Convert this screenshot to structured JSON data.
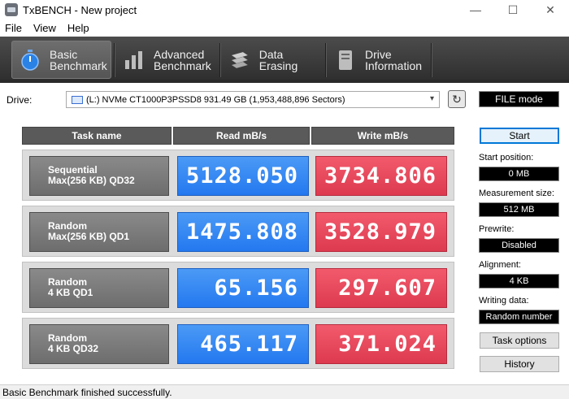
{
  "window": {
    "title": "TxBENCH - New project",
    "min": "—",
    "max": "☐",
    "close": "✕"
  },
  "menu": {
    "file": "File",
    "view": "View",
    "help": "Help"
  },
  "tabs": [
    {
      "line1": "Basic",
      "line2": "Benchmark",
      "icon": "stopwatch-icon",
      "active": true
    },
    {
      "line1": "Advanced",
      "line2": "Benchmark",
      "icon": "bar-chart-icon"
    },
    {
      "line1": "Data Erasing",
      "line2": "",
      "icon": "eraser-icon"
    },
    {
      "line1": "Drive",
      "line2": "Information",
      "icon": "drive-info-icon"
    }
  ],
  "drive": {
    "label": "Drive:",
    "selected": "(L:) NVMe CT1000P3PSSD8  931.49 GB (1,953,488,896 Sectors)"
  },
  "file_mode": "FILE mode",
  "headers": {
    "task": "Task name",
    "read": "Read mB/s",
    "write": "Write mB/s"
  },
  "results": [
    {
      "line1": "Sequential",
      "line2": "Max(256 KB) QD32",
      "read": "5128.050",
      "write": "3734.806"
    },
    {
      "line1": "Random",
      "line2": "Max(256 KB) QD1",
      "read": "1475.808",
      "write": "3528.979"
    },
    {
      "line1": "Random",
      "line2": "4 KB QD1",
      "read": "65.156",
      "write": "297.607"
    },
    {
      "line1": "Random",
      "line2": "4 KB QD32",
      "read": "465.117",
      "write": "371.024"
    }
  ],
  "panel": {
    "start": "Start",
    "start_position_label": "Start position:",
    "start_position": "0 MB",
    "measurement_size_label": "Measurement size:",
    "measurement_size": "512 MB",
    "prewrite_label": "Prewrite:",
    "prewrite": "Disabled",
    "alignment_label": "Alignment:",
    "alignment": "4 KB",
    "writing_data_label": "Writing data:",
    "writing_data": "Random number",
    "task_options": "Task options",
    "history": "History"
  },
  "status": "Basic Benchmark finished successfully.",
  "colors": {
    "read": "#2f80f0",
    "write": "#e84a5f",
    "toolbar": "#3a3a3a"
  }
}
